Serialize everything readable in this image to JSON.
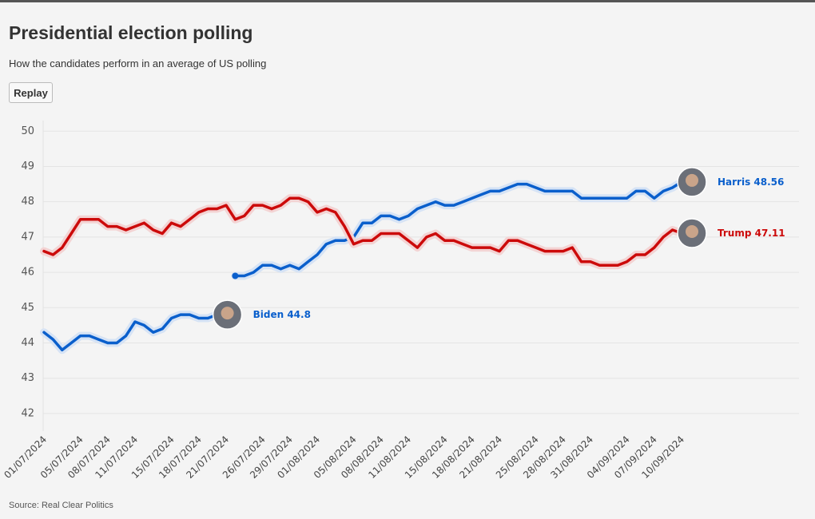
{
  "chart_data": {
    "type": "line",
    "title": "Presidential election polling",
    "subtitle": "How the candidates perform in an average of US polling",
    "button": "Replay",
    "source": "Source: Real Clear Politics",
    "categories": [
      "01/07/2024",
      null,
      null,
      null,
      "05/07/2024",
      null,
      null,
      "08/07/2024",
      null,
      null,
      "11/07/2024",
      null,
      null,
      null,
      "15/07/2024",
      null,
      null,
      "18/07/2024",
      null,
      null,
      "21/07/2024",
      null,
      null,
      null,
      "26/07/2024",
      null,
      null,
      "29/07/2024",
      null,
      null,
      "01/08/2024",
      null,
      null,
      null,
      "05/08/2024",
      null,
      null,
      "08/08/2024",
      null,
      null,
      "11/08/2024",
      null,
      null,
      null,
      "15/08/2024",
      null,
      null,
      "18/08/2024",
      null,
      null,
      "21/08/2024",
      null,
      null,
      null,
      "25/08/2024",
      null,
      null,
      "28/08/2024",
      null,
      null,
      "31/08/2024",
      null,
      null,
      null,
      "04/09/2024",
      null,
      null,
      "07/09/2024",
      null,
      null,
      "10/09/2024"
    ],
    "series": [
      {
        "name": "Biden",
        "color": "#0a5fcc",
        "halo": "#d6e3f5",
        "values": [
          44.3,
          44.1,
          43.8,
          44.0,
          44.2,
          44.2,
          44.1,
          44.0,
          44.0,
          44.2,
          44.6,
          44.5,
          44.3,
          44.4,
          44.7,
          44.8,
          44.8,
          44.7,
          44.7,
          44.8,
          null,
          null,
          null,
          null,
          null,
          null,
          null,
          null,
          null,
          null,
          null,
          null,
          null,
          null,
          null,
          null,
          null,
          null,
          null,
          null,
          null,
          null,
          null,
          null,
          null,
          null,
          null,
          null,
          null,
          null,
          null,
          null,
          null,
          null,
          null,
          null,
          null,
          null,
          null,
          null,
          null,
          null,
          null,
          null,
          null,
          null,
          null,
          null,
          null,
          null,
          null
        ]
      },
      {
        "name": "Harris",
        "color": "#0a5fcc",
        "halo": "#d6e3f5",
        "values": [
          null,
          null,
          null,
          null,
          null,
          null,
          null,
          null,
          null,
          null,
          null,
          null,
          null,
          null,
          null,
          null,
          null,
          null,
          null,
          null,
          null,
          45.9,
          45.9,
          46.0,
          46.2,
          46.2,
          46.1,
          46.2,
          46.1,
          46.3,
          46.5,
          46.8,
          46.9,
          46.9,
          47.0,
          47.4,
          47.4,
          47.6,
          47.6,
          47.5,
          47.6,
          47.8,
          47.9,
          48.0,
          47.9,
          47.9,
          48.0,
          48.1,
          48.2,
          48.3,
          48.3,
          48.4,
          48.5,
          48.5,
          48.4,
          48.3,
          48.3,
          48.3,
          48.3,
          48.1,
          48.1,
          48.1,
          48.1,
          48.1,
          48.1,
          48.3,
          48.3,
          48.1,
          48.3,
          48.4,
          48.56
        ]
      },
      {
        "name": "Trump",
        "color": "#cc0a0a",
        "halo": "#f3d3d3",
        "values": [
          46.6,
          46.5,
          46.7,
          47.1,
          47.5,
          47.5,
          47.5,
          47.3,
          47.3,
          47.2,
          47.3,
          47.4,
          47.2,
          47.1,
          47.4,
          47.3,
          47.5,
          47.7,
          47.8,
          47.8,
          47.9,
          47.5,
          47.6,
          47.9,
          47.9,
          47.8,
          47.9,
          48.1,
          48.1,
          48.0,
          47.7,
          47.8,
          47.7,
          47.3,
          46.8,
          46.9,
          46.9,
          47.1,
          47.1,
          47.1,
          46.9,
          46.7,
          47.0,
          47.1,
          46.9,
          46.9,
          46.8,
          46.7,
          46.7,
          46.7,
          46.6,
          46.9,
          46.9,
          46.8,
          46.7,
          46.6,
          46.6,
          46.6,
          46.7,
          46.3,
          46.3,
          46.2,
          46.2,
          46.2,
          46.3,
          46.5,
          46.5,
          46.7,
          47.0,
          47.2,
          47.11
        ]
      }
    ],
    "ylim": [
      41.5,
      50.3
    ],
    "yticks": [
      42,
      43,
      44,
      45,
      46,
      47,
      48,
      49,
      50
    ],
    "grid": true
  }
}
